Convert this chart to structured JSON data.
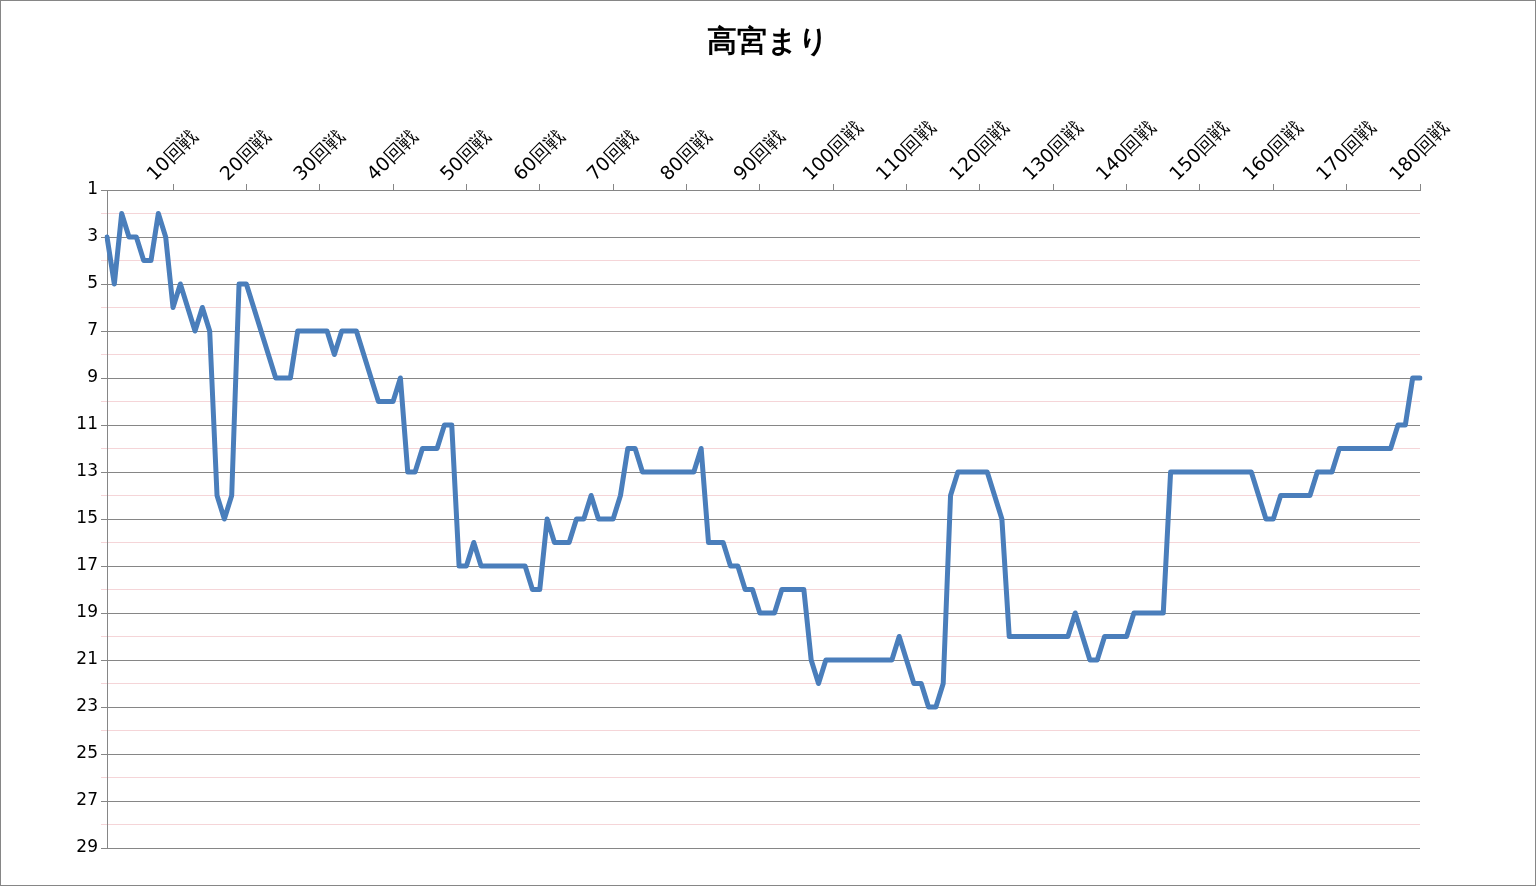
{
  "chart_data": {
    "type": "line",
    "title": "高宮まり",
    "categories": [
      null,
      null,
      null,
      null,
      null,
      null,
      null,
      null,
      null,
      "10回戦",
      null,
      null,
      null,
      null,
      null,
      null,
      null,
      null,
      null,
      "20回戦",
      null,
      null,
      null,
      null,
      null,
      null,
      null,
      null,
      null,
      "30回戦",
      null,
      null,
      null,
      null,
      null,
      null,
      null,
      null,
      null,
      "40回戦",
      null,
      null,
      null,
      null,
      null,
      null,
      null,
      null,
      null,
      "50回戦",
      null,
      null,
      null,
      null,
      null,
      null,
      null,
      null,
      null,
      "60回戦",
      null,
      null,
      null,
      null,
      null,
      null,
      null,
      null,
      null,
      "70回戦",
      null,
      null,
      null,
      null,
      null,
      null,
      null,
      null,
      null,
      "80回戦",
      null,
      null,
      null,
      null,
      null,
      null,
      null,
      null,
      null,
      "90回戦",
      null,
      null,
      null,
      null,
      null,
      null,
      null,
      null,
      null,
      "100回戦",
      null,
      null,
      null,
      null,
      null,
      null,
      null,
      null,
      null,
      "110回戦",
      null,
      null,
      null,
      null,
      null,
      null,
      null,
      null,
      null,
      "120回戦",
      null,
      null,
      null,
      null,
      null,
      null,
      null,
      null,
      null,
      "130回戦",
      null,
      null,
      null,
      null,
      null,
      null,
      null,
      null,
      null,
      "140回戦",
      null,
      null,
      null,
      null,
      null,
      null,
      null,
      null,
      null,
      "150回戦",
      null,
      null,
      null,
      null,
      null,
      null,
      null,
      null,
      null,
      "160回戦",
      null,
      null,
      null,
      null,
      null,
      null,
      null,
      null,
      null,
      "170回戦",
      null,
      null,
      null,
      null,
      null,
      null,
      null,
      null,
      null,
      "180回戦"
    ],
    "series": [
      {
        "color": "#4a7ebb",
        "values": [
          3,
          5,
          2,
          3,
          3,
          4,
          4,
          2,
          3,
          6,
          5,
          6,
          7,
          6,
          7,
          14,
          15,
          14,
          5,
          5,
          6,
          7,
          8,
          9,
          9,
          9,
          7,
          7,
          7,
          7,
          7,
          8,
          7,
          7,
          7,
          8,
          9,
          10,
          10,
          10,
          9,
          13,
          13,
          12,
          12,
          12,
          11,
          11,
          17,
          17,
          16,
          17,
          17,
          17,
          17,
          17,
          17,
          17,
          18,
          18,
          15,
          16,
          16,
          16,
          15,
          15,
          14,
          15,
          15,
          15,
          14,
          12,
          12,
          13,
          13,
          13,
          13,
          13,
          13,
          13,
          13,
          12,
          16,
          16,
          16,
          17,
          17,
          18,
          18,
          19,
          19,
          19,
          18,
          18,
          18,
          18,
          21,
          22,
          21,
          21,
          21,
          21,
          21,
          21,
          21,
          21,
          21,
          21,
          20,
          21,
          22,
          22,
          23,
          23,
          22,
          14,
          13,
          13,
          13,
          13,
          13,
          14,
          15,
          20,
          20,
          20,
          20,
          20,
          20,
          20,
          20,
          20,
          19,
          20,
          21,
          21,
          20,
          20,
          20,
          20,
          19,
          19,
          19,
          19,
          19,
          13,
          13,
          13,
          13,
          13,
          13,
          13,
          13,
          13,
          13,
          13,
          13,
          14,
          15,
          15,
          14,
          14,
          14,
          14,
          14,
          13,
          13,
          13,
          12,
          12,
          12,
          12,
          12,
          12,
          12,
          12,
          11,
          11,
          9,
          9
        ]
      }
    ],
    "ylim": [
      29,
      1
    ],
    "yticks": [
      1,
      {
        "value": 2,
        "label": null
      },
      3,
      {
        "value": 4,
        "label": null
      },
      5,
      {
        "value": 6,
        "label": null
      },
      7,
      {
        "value": 8,
        "label": null
      },
      9,
      {
        "value": 10,
        "label": null
      },
      11,
      {
        "value": 12,
        "label": null
      },
      13,
      {
        "value": 14,
        "label": null
      },
      15,
      {
        "value": 16,
        "label": null
      },
      17,
      {
        "value": 18,
        "label": null
      },
      19,
      {
        "value": 20,
        "label": null
      },
      21,
      {
        "value": 22,
        "label": null
      },
      23,
      {
        "value": 24,
        "label": null
      },
      25,
      {
        "value": 26,
        "label": null
      },
      27,
      {
        "value": 28,
        "label": null
      },
      29
    ],
    "grid": "y",
    "legend": false,
    "marker": "none",
    "line_style": "solid"
  }
}
